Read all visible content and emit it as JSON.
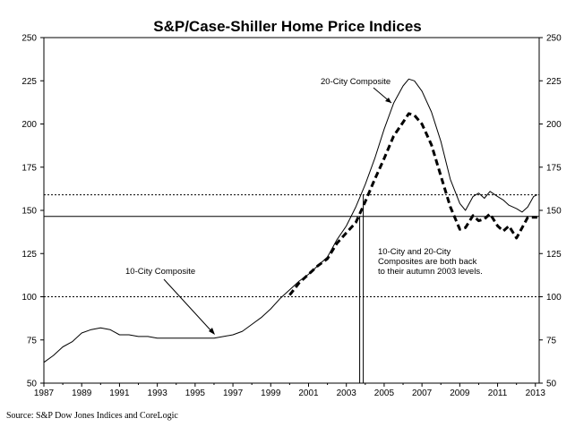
{
  "chart_data": {
    "type": "line",
    "title": "S&P/Case-Shiller Home Price Indices",
    "source": "Source: S&P Dow Jones Indices and CoreLogic",
    "xlabel": "",
    "ylabel": "",
    "xlim": [
      1987,
      2013.2
    ],
    "ylim": [
      50,
      250
    ],
    "x_ticks": [
      "1987",
      "1989",
      "1991",
      "1993",
      "1995",
      "1997",
      "1999",
      "2001",
      "2003",
      "2005",
      "2007",
      "2009",
      "2011",
      "2013"
    ],
    "y_ticks": [
      "50",
      "75",
      "100",
      "125",
      "150",
      "175",
      "200",
      "225",
      "250"
    ],
    "grid": false,
    "reference_lines": [
      {
        "style": "dotted",
        "y": 159
      },
      {
        "style": "solid",
        "y": 146.5
      },
      {
        "style": "dotted",
        "y": 100
      }
    ],
    "series": [
      {
        "name": "10-City Composite",
        "style": "solid",
        "x": [
          1987.0,
          1987.5,
          1988.0,
          1988.5,
          1989.0,
          1989.5,
          1990.0,
          1990.5,
          1991.0,
          1991.5,
          1992.0,
          1992.5,
          1993.0,
          1993.5,
          1994.0,
          1994.5,
          1995.0,
          1995.5,
          1996.0,
          1996.5,
          1997.0,
          1997.5,
          1998.0,
          1998.5,
          1999.0,
          1999.5,
          2000.0,
          2000.5,
          2001.0,
          2001.5,
          2002.0,
          2002.5,
          2003.0,
          2003.5,
          2004.0,
          2004.5,
          2005.0,
          2005.5,
          2006.0,
          2006.3,
          2006.6,
          2007.0,
          2007.5,
          2008.0,
          2008.5,
          2009.0,
          2009.3,
          2009.7,
          2010.0,
          2010.3,
          2010.6,
          2011.0,
          2011.3,
          2011.6,
          2012.0,
          2012.3,
          2012.6,
          2012.9,
          2013.1
        ],
        "values": [
          62,
          66,
          71,
          74,
          79,
          81,
          82,
          81,
          78,
          78,
          77,
          77,
          76,
          76,
          76,
          76,
          76,
          76,
          76,
          77,
          78,
          80,
          84,
          88,
          93,
          99,
          104,
          109,
          113,
          118,
          123,
          133,
          141,
          152,
          165,
          180,
          197,
          212,
          222,
          226,
          225,
          219,
          207,
          190,
          168,
          154,
          150,
          158,
          160,
          157,
          161,
          158,
          156,
          153,
          151,
          149,
          152,
          158,
          159
        ]
      },
      {
        "name": "20-City Composite",
        "style": "dashed",
        "x": [
          2000.0,
          2000.5,
          2001.0,
          2001.5,
          2002.0,
          2002.5,
          2003.0,
          2003.5,
          2004.0,
          2004.5,
          2005.0,
          2005.5,
          2006.0,
          2006.3,
          2006.6,
          2007.0,
          2007.5,
          2008.0,
          2008.5,
          2009.0,
          2009.3,
          2009.7,
          2010.0,
          2010.3,
          2010.6,
          2011.0,
          2011.3,
          2011.6,
          2012.0,
          2012.3,
          2012.6,
          2012.9,
          2013.1
        ],
        "values": [
          101,
          108,
          113,
          118,
          122,
          131,
          137,
          143,
          155,
          168,
          180,
          193,
          201,
          206,
          205,
          200,
          188,
          170,
          152,
          139,
          140,
          147,
          144,
          145,
          148,
          141,
          138,
          141,
          134,
          140,
          146,
          146,
          146
        ]
      }
    ],
    "annotations": {
      "label_20city": "20-City Composite",
      "label_10city": "10-City Composite",
      "note_line1": "10-City and 20-City",
      "note_line2": "Composites are both back",
      "note_line3": "to their autumn 2003 levels."
    }
  }
}
